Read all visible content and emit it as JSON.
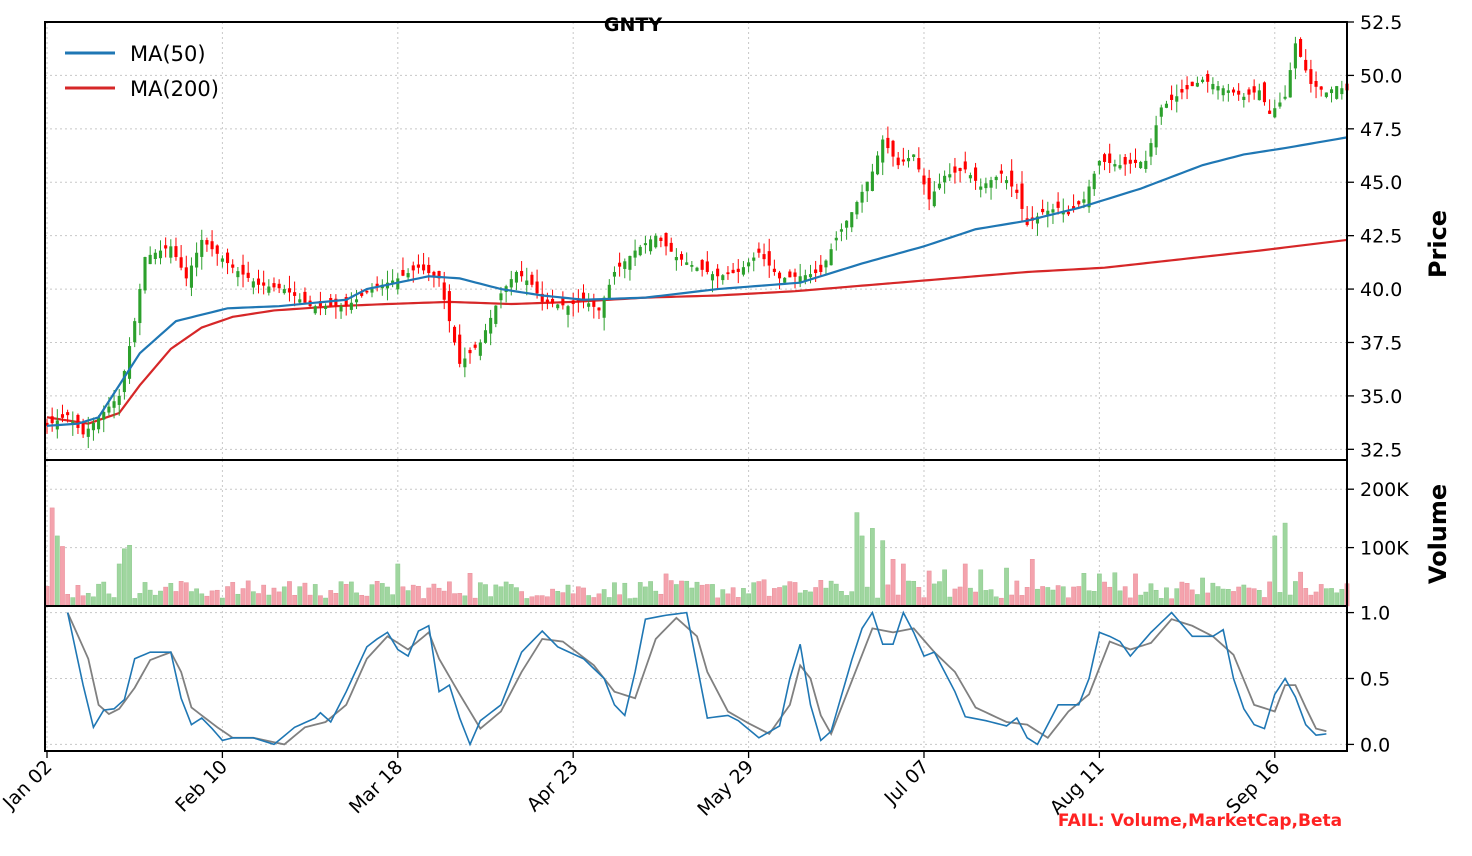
{
  "chart_data": {
    "type": "candlestick",
    "title": "GNTY",
    "x_ticks": [
      "Jan 02",
      "Feb 10",
      "Mar 18",
      "Apr 23",
      "May 29",
      "Jul 07",
      "Aug 11",
      "Sep 16"
    ],
    "price_panel": {
      "ylabel": "Price",
      "ylim": [
        32,
        52.5
      ],
      "yticks": [
        "32.5",
        "35.0",
        "37.5",
        "40.0",
        "42.5",
        "45.0",
        "47.5",
        "50.0",
        "52.5"
      ],
      "legend": [
        {
          "name": "MA(50)",
          "color": "#1f77b4"
        },
        {
          "name": "MA(200)",
          "color": "#d62728"
        }
      ],
      "close_anchors": [
        [
          0,
          33.6
        ],
        [
          4,
          34.1
        ],
        [
          7,
          33.2
        ],
        [
          10,
          34.0
        ],
        [
          14,
          35.0
        ],
        [
          17,
          38.5
        ],
        [
          19,
          41.5
        ],
        [
          24,
          42.0
        ],
        [
          27,
          40.5
        ],
        [
          30,
          42.3
        ],
        [
          36,
          41.0
        ],
        [
          41,
          40.2
        ],
        [
          46,
          40.0
        ],
        [
          51,
          39.2
        ],
        [
          58,
          39.2
        ],
        [
          63,
          40.0
        ],
        [
          68,
          40.5
        ],
        [
          72,
          41.0
        ],
        [
          76,
          40.5
        ],
        [
          78,
          38.5
        ],
        [
          80,
          36.5
        ],
        [
          82,
          37.0
        ],
        [
          84,
          37.5
        ],
        [
          88,
          39.8
        ],
        [
          91,
          40.8
        ],
        [
          94,
          40.2
        ],
        [
          96,
          39.4
        ],
        [
          101,
          39.2
        ],
        [
          104,
          39.5
        ],
        [
          107,
          39.0
        ],
        [
          110,
          40.8
        ],
        [
          114,
          41.8
        ],
        [
          118,
          42.5
        ],
        [
          122,
          41.5
        ],
        [
          126,
          41.0
        ],
        [
          130,
          40.6
        ],
        [
          134,
          40.8
        ],
        [
          138,
          41.7
        ],
        [
          142,
          40.5
        ],
        [
          146,
          40.6
        ],
        [
          150,
          40.8
        ],
        [
          153,
          42.4
        ],
        [
          156,
          43.6
        ],
        [
          160,
          45.5
        ],
        [
          162,
          47.0
        ],
        [
          165,
          45.8
        ],
        [
          168,
          46.3
        ],
        [
          171,
          44.2
        ],
        [
          174,
          45.3
        ],
        [
          178,
          45.6
        ],
        [
          181,
          44.8
        ],
        [
          185,
          45.4
        ],
        [
          188,
          44.5
        ],
        [
          190,
          43.0
        ],
        [
          193,
          43.6
        ],
        [
          196,
          43.8
        ],
        [
          198,
          43.5
        ],
        [
          201,
          44.2
        ],
        [
          204,
          46.0
        ],
        [
          208,
          45.8
        ],
        [
          211,
          45.9
        ],
        [
          213,
          46.0
        ],
        [
          216,
          48.5
        ],
        [
          220,
          49.2
        ],
        [
          224,
          49.8
        ],
        [
          228,
          49.4
        ],
        [
          232,
          49.0
        ],
        [
          235,
          49.3
        ],
        [
          237,
          48.2
        ],
        [
          240,
          49.0
        ],
        [
          242,
          51.5
        ],
        [
          245,
          49.6
        ],
        [
          248,
          49.2
        ],
        [
          250,
          49.5
        ],
        [
          252,
          49.3
        ]
      ],
      "ma50_anchors": [
        [
          0,
          33.6
        ],
        [
          6,
          33.7
        ],
        [
          10,
          34.0
        ],
        [
          18,
          37.0
        ],
        [
          25,
          38.5
        ],
        [
          35,
          39.1
        ],
        [
          45,
          39.2
        ],
        [
          58,
          39.5
        ],
        [
          62,
          40.0
        ],
        [
          68,
          40.3
        ],
        [
          74,
          40.6
        ],
        [
          80,
          40.5
        ],
        [
          88,
          40.0
        ],
        [
          96,
          39.7
        ],
        [
          104,
          39.5
        ],
        [
          116,
          39.6
        ],
        [
          130,
          40.0
        ],
        [
          146,
          40.3
        ],
        [
          158,
          41.2
        ],
        [
          170,
          42.0
        ],
        [
          180,
          42.8
        ],
        [
          190,
          43.2
        ],
        [
          200,
          43.8
        ],
        [
          212,
          44.7
        ],
        [
          224,
          45.8
        ],
        [
          232,
          46.3
        ],
        [
          240,
          46.6
        ],
        [
          252,
          47.1
        ]
      ],
      "ma200_anchors": [
        [
          0,
          34.0
        ],
        [
          8,
          33.7
        ],
        [
          14,
          34.2
        ],
        [
          18,
          35.5
        ],
        [
          24,
          37.2
        ],
        [
          30,
          38.2
        ],
        [
          36,
          38.7
        ],
        [
          44,
          39.0
        ],
        [
          56,
          39.2
        ],
        [
          66,
          39.3
        ],
        [
          78,
          39.4
        ],
        [
          90,
          39.3
        ],
        [
          102,
          39.4
        ],
        [
          116,
          39.6
        ],
        [
          130,
          39.7
        ],
        [
          145,
          39.9
        ],
        [
          160,
          40.2
        ],
        [
          175,
          40.5
        ],
        [
          190,
          40.8
        ],
        [
          205,
          41.0
        ],
        [
          220,
          41.4
        ],
        [
          235,
          41.8
        ],
        [
          252,
          42.3
        ]
      ]
    },
    "volume_panel": {
      "ylabel": "Volume",
      "ylim": [
        0,
        250000
      ],
      "yticks": [
        "100K",
        "200K"
      ],
      "spikes": [
        [
          1,
          168000
        ],
        [
          2,
          120000
        ],
        [
          3,
          102000
        ],
        [
          14,
          72000
        ],
        [
          15,
          98000
        ],
        [
          16,
          104000
        ],
        [
          27,
          40000
        ],
        [
          47,
          42000
        ],
        [
          52,
          37000
        ],
        [
          68,
          72000
        ],
        [
          82,
          56000
        ],
        [
          84,
          40000
        ],
        [
          90,
          37000
        ],
        [
          117,
          42000
        ],
        [
          120,
          55000
        ],
        [
          137,
          40000
        ],
        [
          139,
          45000
        ],
        [
          150,
          44000
        ],
        [
          157,
          160000
        ],
        [
          158,
          120000
        ],
        [
          160,
          133000
        ],
        [
          162,
          112000
        ],
        [
          164,
          80000
        ],
        [
          166,
          72000
        ],
        [
          171,
          60000
        ],
        [
          174,
          62000
        ],
        [
          178,
          72000
        ],
        [
          181,
          62000
        ],
        [
          186,
          65000
        ],
        [
          191,
          80000
        ],
        [
          201,
          56000
        ],
        [
          204,
          55000
        ],
        [
          207,
          57000
        ],
        [
          211,
          55000
        ],
        [
          224,
          48000
        ],
        [
          238,
          120000
        ],
        [
          240,
          142000
        ],
        [
          243,
          58000
        ]
      ],
      "base_volume": 35000
    },
    "oscillator_panel": {
      "ylim": [
        -0.05,
        1.05
      ],
      "yticks": [
        "0.0",
        "0.5",
        "1.0"
      ],
      "k_anchors": [
        [
          4,
          1.0
        ],
        [
          7,
          0.45
        ],
        [
          9,
          0.13
        ],
        [
          11,
          0.26
        ],
        [
          13,
          0.27
        ],
        [
          15,
          0.34
        ],
        [
          17,
          0.65
        ],
        [
          20,
          0.7
        ],
        [
          24,
          0.7
        ],
        [
          26,
          0.35
        ],
        [
          28,
          0.15
        ],
        [
          30,
          0.2
        ],
        [
          32,
          0.12
        ],
        [
          34,
          0.03
        ],
        [
          36,
          0.05
        ],
        [
          40,
          0.05
        ],
        [
          44,
          0.0
        ],
        [
          48,
          0.13
        ],
        [
          52,
          0.2
        ],
        [
          53,
          0.24
        ],
        [
          55,
          0.17
        ],
        [
          58,
          0.4
        ],
        [
          62,
          0.74
        ],
        [
          64,
          0.8
        ],
        [
          66,
          0.85
        ],
        [
          68,
          0.72
        ],
        [
          70,
          0.67
        ],
        [
          72,
          0.86
        ],
        [
          74,
          0.9
        ],
        [
          76,
          0.4
        ],
        [
          78,
          0.45
        ],
        [
          80,
          0.2
        ],
        [
          82,
          0.0
        ],
        [
          84,
          0.18
        ],
        [
          88,
          0.3
        ],
        [
          92,
          0.7
        ],
        [
          96,
          0.86
        ],
        [
          99,
          0.74
        ],
        [
          104,
          0.65
        ],
        [
          108,
          0.5
        ],
        [
          110,
          0.3
        ],
        [
          112,
          0.22
        ],
        [
          114,
          0.55
        ],
        [
          116,
          0.95
        ],
        [
          120,
          0.98
        ],
        [
          124,
          1.0
        ],
        [
          126,
          0.6
        ],
        [
          128,
          0.2
        ],
        [
          132,
          0.22
        ],
        [
          134,
          0.18
        ],
        [
          138,
          0.05
        ],
        [
          142,
          0.14
        ],
        [
          144,
          0.5
        ],
        [
          146,
          0.76
        ],
        [
          148,
          0.3
        ],
        [
          150,
          0.03
        ],
        [
          152,
          0.1
        ],
        [
          156,
          0.64
        ],
        [
          158,
          0.88
        ],
        [
          160,
          1.0
        ],
        [
          162,
          0.76
        ],
        [
          164,
          0.76
        ],
        [
          166,
          1.0
        ],
        [
          168,
          0.85
        ],
        [
          170,
          0.67
        ],
        [
          172,
          0.7
        ],
        [
          174,
          0.55
        ],
        [
          176,
          0.4
        ],
        [
          178,
          0.21
        ],
        [
          182,
          0.18
        ],
        [
          186,
          0.14
        ],
        [
          188,
          0.2
        ],
        [
          190,
          0.05
        ],
        [
          192,
          0.0
        ],
        [
          196,
          0.3
        ],
        [
          200,
          0.3
        ],
        [
          202,
          0.5
        ],
        [
          204,
          0.85
        ],
        [
          206,
          0.82
        ],
        [
          208,
          0.78
        ],
        [
          210,
          0.67
        ],
        [
          214,
          0.85
        ],
        [
          218,
          1.0
        ],
        [
          222,
          0.82
        ],
        [
          226,
          0.82
        ],
        [
          228,
          0.87
        ],
        [
          230,
          0.5
        ],
        [
          232,
          0.27
        ],
        [
          234,
          0.15
        ],
        [
          236,
          0.12
        ],
        [
          238,
          0.38
        ],
        [
          240,
          0.5
        ],
        [
          242,
          0.36
        ],
        [
          244,
          0.15
        ],
        [
          246,
          0.07
        ],
        [
          248,
          0.08
        ]
      ],
      "d_anchors": [
        [
          4,
          1.0
        ],
        [
          8,
          0.65
        ],
        [
          10,
          0.3
        ],
        [
          12,
          0.23
        ],
        [
          14,
          0.27
        ],
        [
          17,
          0.43
        ],
        [
          20,
          0.64
        ],
        [
          24,
          0.7
        ],
        [
          26,
          0.55
        ],
        [
          28,
          0.28
        ],
        [
          30,
          0.22
        ],
        [
          33,
          0.13
        ],
        [
          36,
          0.05
        ],
        [
          40,
          0.05
        ],
        [
          46,
          0.0
        ],
        [
          50,
          0.13
        ],
        [
          54,
          0.17
        ],
        [
          58,
          0.3
        ],
        [
          62,
          0.65
        ],
        [
          66,
          0.82
        ],
        [
          70,
          0.72
        ],
        [
          74,
          0.85
        ],
        [
          76,
          0.65
        ],
        [
          80,
          0.38
        ],
        [
          84,
          0.12
        ],
        [
          88,
          0.25
        ],
        [
          92,
          0.55
        ],
        [
          96,
          0.8
        ],
        [
          100,
          0.78
        ],
        [
          106,
          0.6
        ],
        [
          110,
          0.4
        ],
        [
          114,
          0.35
        ],
        [
          118,
          0.8
        ],
        [
          122,
          0.96
        ],
        [
          126,
          0.82
        ],
        [
          128,
          0.55
        ],
        [
          132,
          0.25
        ],
        [
          136,
          0.16
        ],
        [
          140,
          0.08
        ],
        [
          144,
          0.3
        ],
        [
          146,
          0.6
        ],
        [
          148,
          0.5
        ],
        [
          150,
          0.22
        ],
        [
          152,
          0.08
        ],
        [
          156,
          0.48
        ],
        [
          160,
          0.88
        ],
        [
          164,
          0.85
        ],
        [
          168,
          0.88
        ],
        [
          172,
          0.7
        ],
        [
          176,
          0.55
        ],
        [
          180,
          0.28
        ],
        [
          186,
          0.17
        ],
        [
          190,
          0.15
        ],
        [
          194,
          0.05
        ],
        [
          198,
          0.25
        ],
        [
          202,
          0.38
        ],
        [
          206,
          0.78
        ],
        [
          210,
          0.72
        ],
        [
          214,
          0.77
        ],
        [
          218,
          0.95
        ],
        [
          222,
          0.9
        ],
        [
          226,
          0.82
        ],
        [
          230,
          0.68
        ],
        [
          234,
          0.3
        ],
        [
          238,
          0.25
        ],
        [
          240,
          0.45
        ],
        [
          242,
          0.45
        ],
        [
          244,
          0.28
        ],
        [
          246,
          0.12
        ],
        [
          248,
          0.1
        ]
      ],
      "k_color": "#1f77b4",
      "d_color": "#808080"
    },
    "up_color": "#2ca02c",
    "down_color": "#ff0000",
    "num_days": 253
  },
  "footer": {
    "fail_text": "FAIL: Volume,MarketCap,Beta",
    "fail_color": "#ff2222"
  }
}
